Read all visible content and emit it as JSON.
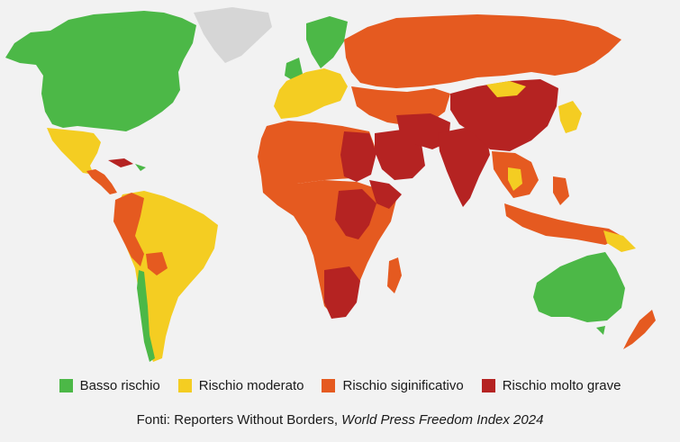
{
  "colors": {
    "background": "#f2f2f2",
    "no_data": "#d6d6d6",
    "low": "#4cb847",
    "moderate": "#f4cd22",
    "significant": "#e55a20",
    "very_serious": "#b52322"
  },
  "legend": [
    {
      "label": "Basso rischio",
      "color": "#4cb847"
    },
    {
      "label": "Rischio moderato",
      "color": "#f4cd22"
    },
    {
      "label": "Rischio siginificativo",
      "color": "#e55a20"
    },
    {
      "label": "Rischio molto grave",
      "color": "#b52322"
    }
  ],
  "source": {
    "prefix": "Fonti: Reporters Without Borders, ",
    "title": "World Press Freedom Index 2024"
  }
}
